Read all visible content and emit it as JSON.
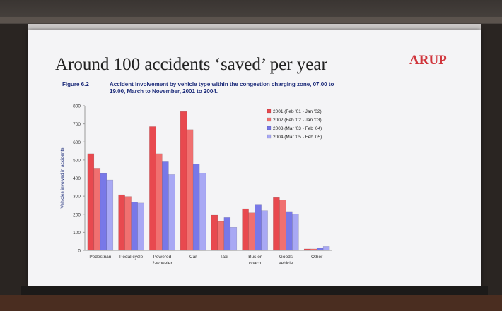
{
  "slide": {
    "title": "Around 100 accidents ‘saved’ per year",
    "brand": "ARUP",
    "figure_label": "Figure 6.2",
    "figure_caption": "Accident involvement by vehicle type within the congestion charging zone, 07.00 to 19.00, March to November, 2001 to 2004."
  },
  "chart_data": {
    "type": "bar",
    "title": "",
    "ylabel": "Vehicles involved in accidents",
    "xlabel": "",
    "ylim": [
      0,
      800
    ],
    "yticks": [
      0,
      100,
      200,
      300,
      400,
      500,
      600,
      700,
      800
    ],
    "grid": false,
    "legend_position": "top-right",
    "categories": [
      "Pedestrian",
      "Pedal cycle",
      "Powered\n2-wheeler",
      "Car",
      "Taxi",
      "Bus or\ncoach",
      "Goods\nvehicle",
      "Other"
    ],
    "series": [
      {
        "name": "2001 (Feb '01 - Jan '02)",
        "color": "#e8494f",
        "values": [
          535,
          308,
          685,
          768,
          195,
          230,
          292,
          8
        ]
      },
      {
        "name": "2002 (Feb '02 - Jan '03)",
        "color": "#f07070",
        "values": [
          455,
          298,
          535,
          668,
          160,
          208,
          278,
          8
        ]
      },
      {
        "name": "2003 (Mar '03 - Feb '04)",
        "color": "#7878e8",
        "values": [
          425,
          268,
          490,
          478,
          182,
          255,
          215,
          12
        ]
      },
      {
        "name": "2004 (Mar '05 - Feb '05)",
        "color": "#a8a8f4",
        "values": [
          390,
          262,
          420,
          428,
          128,
          220,
          200,
          22
        ]
      }
    ]
  }
}
